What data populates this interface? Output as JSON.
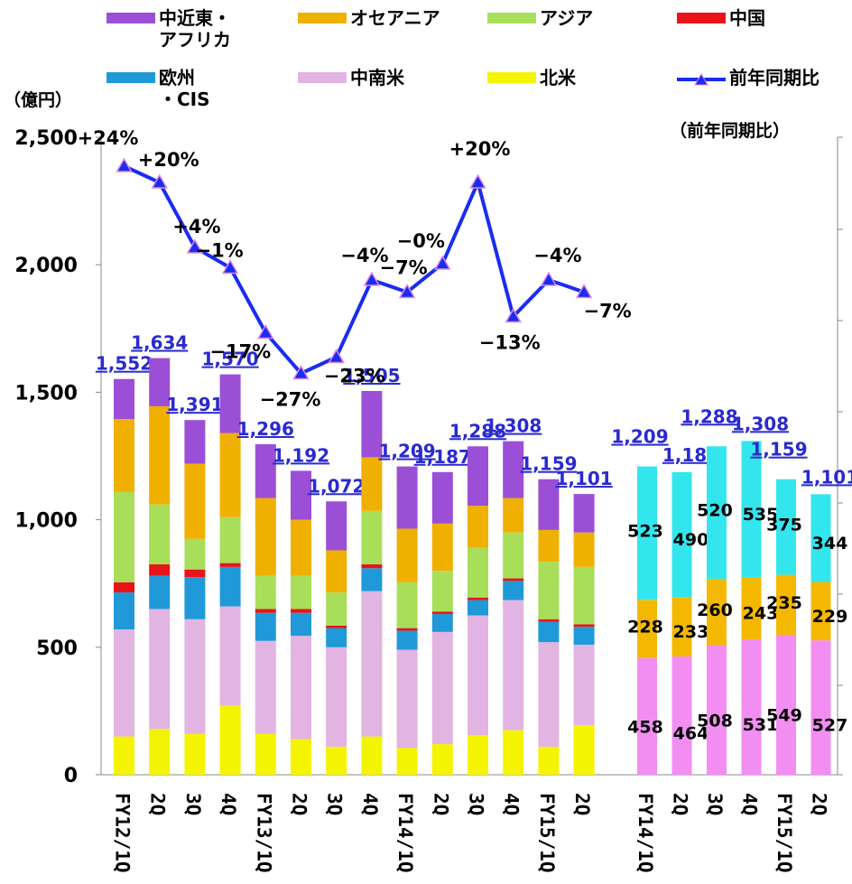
{
  "legend": {
    "items": [
      {
        "key": "mideast",
        "label": "中近東・\nアフリカ",
        "color": "#9b4fd6"
      },
      {
        "key": "oceania",
        "label": "オセアニア",
        "color": "#f0b000"
      },
      {
        "key": "asia",
        "label": "アジア",
        "color": "#a8de5a"
      },
      {
        "key": "china",
        "label": "中国",
        "color": "#e8141a"
      },
      {
        "key": "europe",
        "label": "欧州\n・CIS",
        "color": "#2099d8"
      },
      {
        "key": "latam",
        "label": "中南米",
        "color": "#e2b4e2"
      },
      {
        "key": "na",
        "label": "北米",
        "color": "#f4f400"
      },
      {
        "key": "yoy",
        "label": "前年同期比",
        "color": "#1a2cf0"
      }
    ]
  },
  "axis": {
    "left_title": "（億円）",
    "right_title": "（前年同期比）"
  },
  "chart_data": [
    {
      "type": "bar",
      "stacked": true,
      "ylim": [
        0,
        2500
      ],
      "yticks": [
        "0",
        "500",
        "1,000",
        "1,500",
        "2,000",
        "2,500"
      ],
      "categories": [
        "FY12/1Q",
        "2Q",
        "3Q",
        "4Q",
        "FY13/1Q",
        "2Q",
        "3Q",
        "4Q",
        "FY14/1Q",
        "2Q",
        "3Q",
        "4Q",
        "FY15/1Q",
        "2Q"
      ],
      "totals": [
        "1,552",
        "1,634",
        "1,391",
        "1,570",
        "1,296",
        "1,192",
        "1,072",
        "1,505",
        "1,209",
        "1,187",
        "1,288",
        "1,308",
        "1,159",
        "1,101"
      ],
      "series": [
        {
          "name": "北米",
          "color": "#f4f400",
          "values": [
            150,
            180,
            160,
            270,
            160,
            140,
            110,
            150,
            105,
            120,
            155,
            175,
            110,
            195
          ]
        },
        {
          "name": "中南米",
          "color": "#e2b4e2",
          "values": [
            420,
            470,
            450,
            390,
            365,
            405,
            390,
            570,
            385,
            440,
            470,
            510,
            410,
            315
          ]
        },
        {
          "name": "欧州・CIS",
          "color": "#2099d8",
          "values": [
            145,
            130,
            165,
            155,
            110,
            90,
            75,
            90,
            75,
            70,
            60,
            75,
            80,
            70
          ]
        },
        {
          "name": "中国",
          "color": "#e8141a",
          "values": [
            40,
            45,
            30,
            15,
            15,
            15,
            10,
            15,
            10,
            10,
            10,
            10,
            10,
            10
          ]
        },
        {
          "name": "アジア",
          "color": "#a8de5a",
          "values": [
            355,
            235,
            120,
            180,
            130,
            130,
            130,
            210,
            180,
            160,
            195,
            180,
            225,
            225
          ]
        },
        {
          "name": "オセアニア",
          "color": "#f0b000",
          "values": [
            285,
            385,
            295,
            330,
            305,
            220,
            165,
            210,
            210,
            185,
            165,
            135,
            125,
            135
          ]
        },
        {
          "name": "中近東・アフリカ",
          "color": "#9b4fd6",
          "values": [
            157,
            189,
            171,
            230,
            211,
            192,
            192,
            260,
            244,
            202,
            233,
            223,
            199,
            151
          ]
        }
      ]
    },
    {
      "type": "line",
      "name": "前年同期比",
      "categories": [
        "FY12/1Q",
        "2Q",
        "3Q",
        "4Q",
        "FY13/1Q",
        "2Q",
        "3Q",
        "4Q",
        "FY14/1Q",
        "2Q",
        "3Q",
        "4Q",
        "FY15/1Q",
        "2Q"
      ],
      "values": [
        24,
        20,
        4,
        -1,
        -17,
        -27,
        -23,
        -4,
        -7,
        0,
        20,
        -13,
        -4,
        -7
      ],
      "labels": [
        "+24%",
        "+20%",
        "+4%",
        "−1%",
        "−17%",
        "−27%",
        "−23%",
        "−4%",
        "−7%",
        "−0%",
        "+20%",
        "−13%",
        "−4%",
        "−7%"
      ]
    },
    {
      "type": "bar",
      "stacked": true,
      "ylim": [
        0,
        2500
      ],
      "categories": [
        "FY14/1Q",
        "2Q",
        "3Q",
        "4Q",
        "FY15/1Q",
        "2Q"
      ],
      "totals": [
        "1,209",
        "1,187",
        "1,288",
        "1,308",
        "1,159",
        "1,101"
      ],
      "series": [
        {
          "name": "pink",
          "color": "#f28ef2",
          "values": [
            458,
            464,
            508,
            531,
            549,
            527
          ],
          "labels": [
            "458",
            "464",
            "508",
            "531",
            "549",
            "527"
          ]
        },
        {
          "name": "orange",
          "color": "#f5b800",
          "values": [
            228,
            233,
            260,
            243,
            235,
            229
          ],
          "labels": [
            "228",
            "233",
            "260",
            "243",
            "235",
            "229"
          ]
        },
        {
          "name": "cyan",
          "color": "#33e6ee",
          "values": [
            523,
            490,
            520,
            535,
            375,
            344
          ],
          "labels": [
            "523",
            "490",
            "520",
            "535",
            "375",
            "344"
          ]
        }
      ]
    }
  ]
}
